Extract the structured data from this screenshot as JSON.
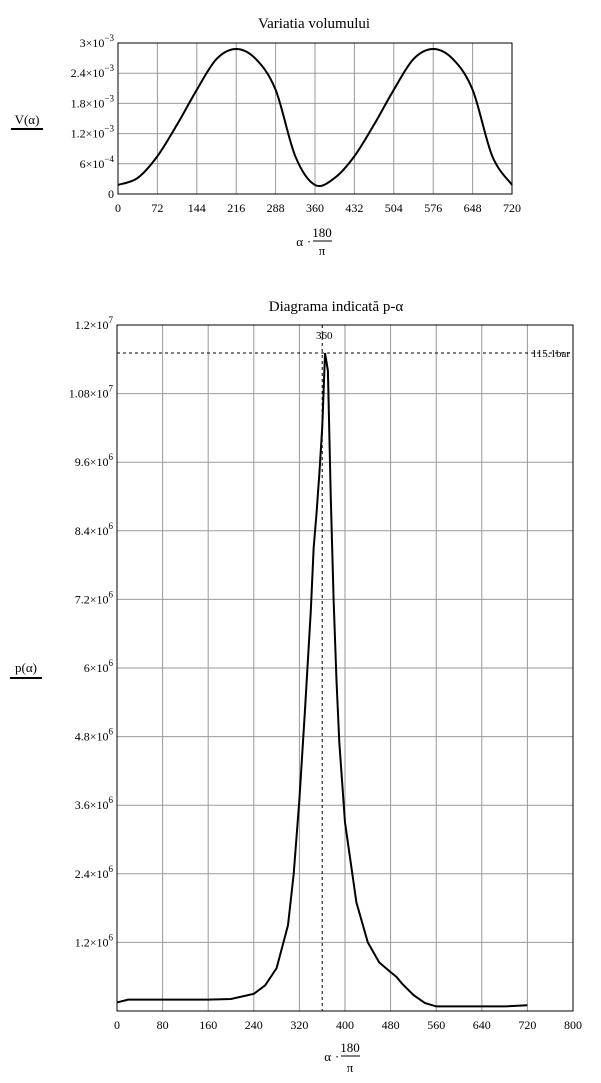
{
  "chart_data": [
    {
      "type": "line",
      "title": "Variatia volumului",
      "ylabel": "V(α)",
      "xlabel": "α·180/π",
      "xlabel_num": "180",
      "xlabel_den": "π",
      "xlabel_main": "α",
      "xlim": [
        0,
        720
      ],
      "ylim": [
        0,
        0.003
      ],
      "grid": true,
      "x_ticks": [
        "0",
        "72",
        "144",
        "216",
        "288",
        "360",
        "432",
        "504",
        "576",
        "648",
        "720"
      ],
      "y_ticks": [
        {
          "value": 0,
          "mant": "0",
          "exp": ""
        },
        {
          "value": 0.0006,
          "mant": "6×10",
          "exp": "−4"
        },
        {
          "value": 0.0012,
          "mant": "1.2×10",
          "exp": "−3"
        },
        {
          "value": 0.0018,
          "mant": "1.8×10",
          "exp": "−3"
        },
        {
          "value": 0.0024,
          "mant": "2.4×10",
          "exp": "−3"
        },
        {
          "value": 0.003,
          "mant": "3×10",
          "exp": "−3"
        }
      ],
      "series": [
        {
          "x": [
            0,
            36,
            72,
            108,
            144,
            180,
            216,
            252,
            288,
            324,
            360,
            396,
            432,
            468,
            504,
            540,
            576,
            612,
            648,
            684,
            720
          ],
          "y": [
            0.00018,
            0.00032,
            0.00075,
            0.00138,
            0.00207,
            0.00268,
            0.00288,
            0.00268,
            0.00207,
            0.00075,
            0.00018,
            0.00032,
            0.00075,
            0.00138,
            0.00207,
            0.00268,
            0.00288,
            0.00268,
            0.00207,
            0.00075,
            0.00018
          ]
        }
      ],
      "color": "#000000"
    },
    {
      "type": "line",
      "title": "Diagrama indicată p-α",
      "ylabel": "p(α)",
      "xlabel": "α·180/π",
      "xlabel_num": "180",
      "xlabel_den": "π",
      "xlabel_main": "α",
      "xlim": [
        0,
        800
      ],
      "ylim": [
        0,
        12000000
      ],
      "grid": true,
      "x_ticks": [
        "0",
        "80",
        "160",
        "240",
        "320",
        "400",
        "480",
        "560",
        "640",
        "720",
        "800"
      ],
      "y_ticks": [
        {
          "value": 1200000,
          "mant": "1.2×10",
          "exp": "6"
        },
        {
          "value": 2400000,
          "mant": "2.4×10",
          "exp": "6"
        },
        {
          "value": 3600000,
          "mant": "3.6×10",
          "exp": "6"
        },
        {
          "value": 4800000,
          "mant": "4.8×10",
          "exp": "6"
        },
        {
          "value": 6000000,
          "mant": "6×10",
          "exp": "6"
        },
        {
          "value": 7200000,
          "mant": "7.2×10",
          "exp": "6"
        },
        {
          "value": 8400000,
          "mant": "8.4×10",
          "exp": "6"
        },
        {
          "value": 9600000,
          "mant": "9.6×10",
          "exp": "6"
        },
        {
          "value": 10800000,
          "mant": "1.08×10",
          "exp": "7"
        },
        {
          "value": 12000000,
          "mant": "1.2×10",
          "exp": "7"
        }
      ],
      "series": [
        {
          "x": [
            0,
            20,
            100,
            160,
            200,
            240,
            260,
            280,
            300,
            310,
            320,
            330,
            340,
            345,
            350,
            355,
            360,
            365,
            370,
            375,
            380,
            385,
            390,
            400,
            420,
            440,
            460,
            480,
            490,
            500,
            520,
            540,
            560,
            600,
            640,
            680,
            720
          ],
          "y": [
            150000,
            200000,
            200000,
            200000,
            210000,
            300000,
            450000,
            750000,
            1500000,
            2400000,
            3700000,
            5300000,
            7000000,
            8100000,
            8700000,
            9400000,
            10200000,
            11510000,
            11200000,
            9000000,
            7200000,
            5800000,
            4700000,
            3300000,
            1900000,
            1200000,
            850000,
            680000,
            600000,
            480000,
            280000,
            140000,
            80000,
            80000,
            80000,
            80000,
            100000
          ]
        }
      ],
      "color": "#000000",
      "annotations": {
        "peak_label": "115.1bar",
        "peak_value": 11510000,
        "marker_label": "360",
        "marker_x": 360
      }
    }
  ]
}
